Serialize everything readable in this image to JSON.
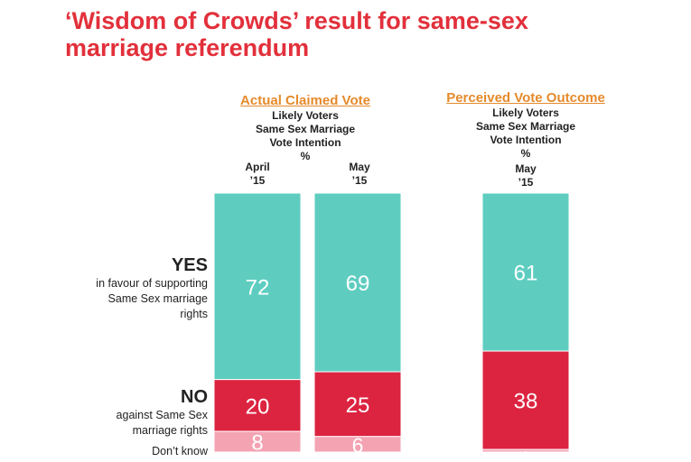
{
  "title": "‘Wisdom of Crowds’ result for same-sex marriage referendum",
  "groups": [
    {
      "title": "Actual Claimed Vote",
      "subtitle": "Likely Voters\nSame Sex Marriage\nVote Intention\n%"
    },
    {
      "title": "Perceived Vote Outcome",
      "subtitle": "Likely Voters\nSame Sex Marriage\nVote Intention\n%"
    }
  ],
  "row_labels": {
    "yes": "YES",
    "yes_sub": "in favour of supporting\nSame Sex marriage\nrights",
    "no": "NO",
    "no_sub": "against Same Sex\nmarriage rights",
    "dont_know": "Don’t know"
  },
  "chart_data": {
    "type": "bar",
    "stacked": true,
    "categories": [
      "April\n’15",
      "May\n’15",
      "May\n’15"
    ],
    "series": [
      {
        "name": "YES",
        "values": [
          72,
          69,
          61
        ],
        "color": "#5ecdc0",
        "label_color": "#ffffff"
      },
      {
        "name": "NO",
        "values": [
          20,
          25,
          38
        ],
        "color": "#dc2440",
        "label_color": "#ffffff"
      },
      {
        "name": "Don’t know",
        "values": [
          8,
          6,
          1
        ],
        "color": "#f4a3b3",
        "label_color": "#ffffff"
      }
    ],
    "ylim": [
      0,
      100
    ],
    "legend": "none",
    "grid": false
  }
}
